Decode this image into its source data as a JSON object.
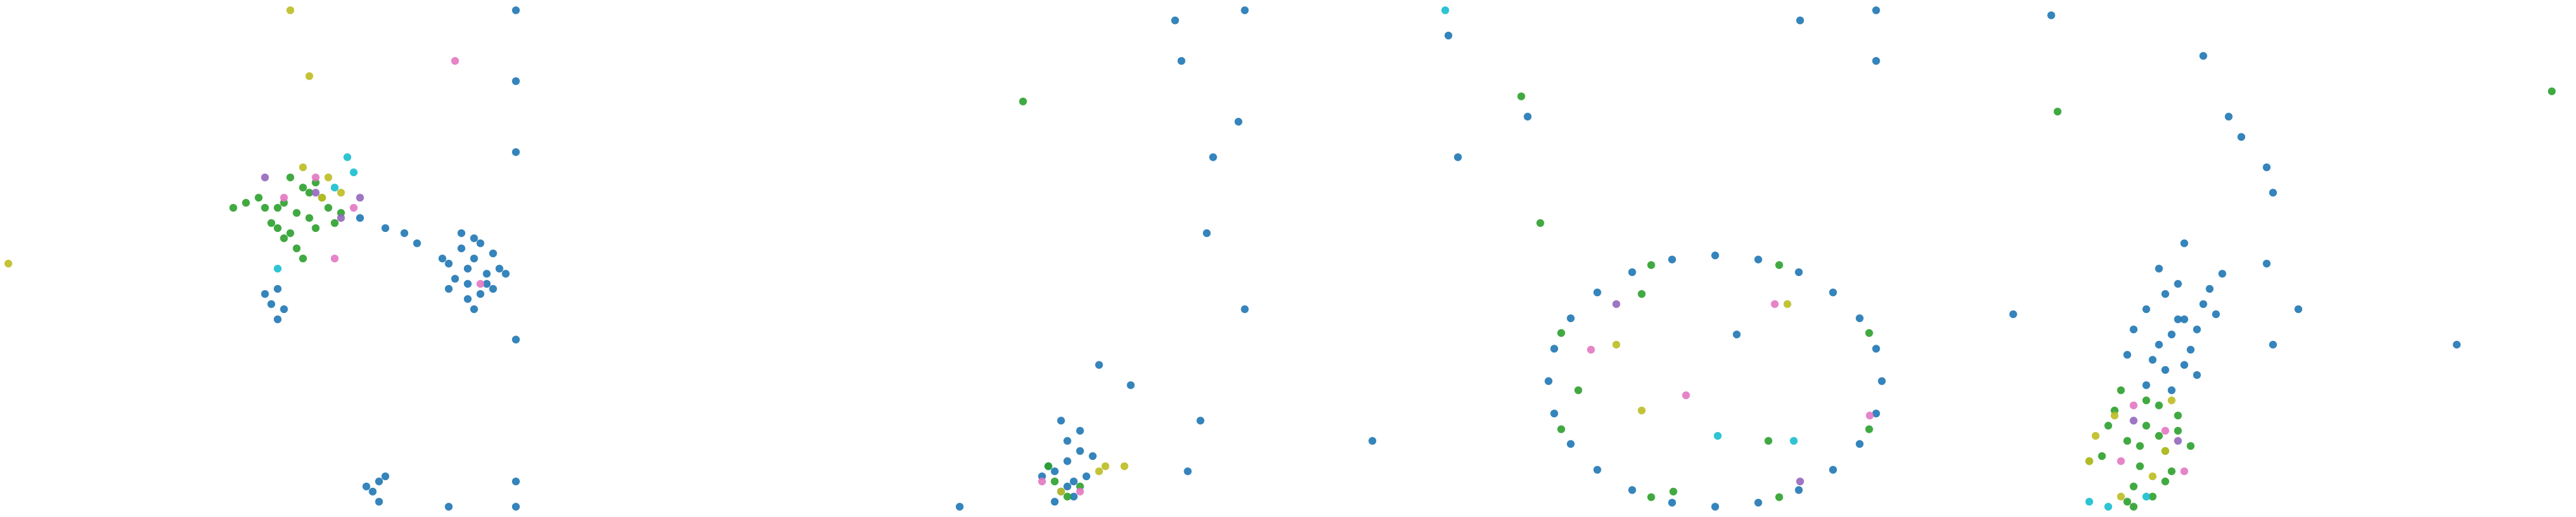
{
  "chart_data": [
    {
      "type": "scatter",
      "xlim": [
        0,
        100
      ],
      "ylim": [
        0,
        100
      ],
      "series": [
        {
          "color": "#1f77b4",
          "x": [
            72,
            74,
            76,
            70,
            73,
            77,
            75,
            71,
            78,
            74,
            69,
            76,
            73,
            72,
            75,
            79,
            70,
            74,
            77,
            73,
            43,
            42,
            44,
            43,
            41,
            59,
            58,
            60,
            59,
            57,
            80.6,
            80.6,
            80.6,
            80.6,
            80.6,
            80.6,
            56,
            60,
            63,
            65,
            70
          ],
          "y": [
            52,
            50,
            47,
            49,
            45,
            51,
            43,
            46,
            48,
            54,
            50,
            45,
            42,
            55,
            53,
            47,
            44,
            40,
            44,
            48,
            44,
            41,
            40,
            38,
            43,
            6,
            4,
            7,
            2,
            5,
            99,
            85,
            71,
            34,
            6,
            1,
            58,
            56,
            55,
            53,
            1
          ]
        },
        {
          "color": "#2ca02c",
          "x": [
            46,
            44,
            48,
            42,
            50,
            45,
            47,
            43,
            49,
            41,
            46,
            51,
            38,
            36,
            44,
            48,
            52,
            45,
            40,
            47,
            43,
            49,
            53
          ],
          "y": [
            59,
            61,
            58,
            57,
            62,
            55,
            64,
            60,
            56,
            60,
            52,
            60,
            61,
            60,
            54,
            63,
            57,
            66,
            62,
            50,
            56,
            65,
            59
          ]
        },
        {
          "color": "#bcbd22",
          "x": [
            45,
            48,
            51,
            50,
            53,
            47,
            0.5
          ],
          "y": [
            99,
            86,
            66,
            62,
            63,
            68,
            49
          ]
        },
        {
          "color": "#e377c2",
          "x": [
            71,
            52,
            44,
            49,
            55,
            75
          ],
          "y": [
            89,
            50,
            62,
            66,
            60,
            45
          ]
        },
        {
          "color": "#17becf",
          "x": [
            54,
            55,
            43,
            52
          ],
          "y": [
            70,
            67,
            48,
            64
          ]
        },
        {
          "color": "#9467bd",
          "x": [
            41,
            49,
            56,
            53
          ],
          "y": [
            66,
            63,
            62,
            58
          ]
        }
      ]
    },
    {
      "type": "scatter",
      "xlim": [
        0,
        100
      ],
      "ylim": [
        0,
        100
      ],
      "series": [
        {
          "color": "#1f77b4",
          "x": [
            83,
            94,
            84,
            93,
            89,
            88,
            94,
            71,
            76,
            87,
            49,
            85,
            68,
            64,
            66,
            67,
            65,
            68,
            63,
            66,
            69,
            64,
            67,
            65,
            70,
            62,
            66
          ],
          "y": [
            97,
            99,
            89,
            77,
            70,
            55,
            40,
            29,
            25,
            18,
            1,
            8,
            16,
            8,
            10,
            6,
            4,
            12,
            9,
            14,
            7,
            2,
            3,
            18,
            11,
            7,
            5
          ]
        },
        {
          "color": "#2ca02c",
          "x": [
            59,
            64,
            66,
            63,
            68
          ],
          "y": [
            81,
            6,
            3,
            9,
            5
          ]
        },
        {
          "color": "#bcbd22",
          "x": [
            71,
            72,
            75,
            65
          ],
          "y": [
            8,
            9,
            9,
            4
          ]
        },
        {
          "color": "#e377c2",
          "x": [
            62,
            68
          ],
          "y": [
            6,
            4
          ]
        }
      ]
    },
    {
      "type": "scatter",
      "xlim": [
        0,
        100
      ],
      "ylim": [
        0,
        100
      ],
      "series": [
        {
          "color": "#1f77b4",
          "x": [
            92.9,
            92.0,
            89.4,
            85.2,
            79.8,
            73.4,
            66.6,
            59.8,
            53.5,
            48.0,
            43.8,
            41.2,
            40.3,
            41.2,
            43.8,
            48.0,
            53.5,
            59.8,
            66.6,
            73.4,
            79.8,
            85.2,
            89.4,
            92.0,
            12.5,
            24.5,
            26,
            37,
            80,
            92,
            70,
            92
          ],
          "y": [
            25.8,
            32.2,
            38.2,
            43.3,
            47.3,
            49.8,
            50.6,
            49.8,
            47.3,
            43.3,
            38.2,
            32.2,
            25.8,
            19.4,
            13.4,
            8.3,
            4.3,
            1.8,
            1.0,
            1.8,
            4.3,
            8.3,
            13.4,
            19.4,
            14,
            94,
            70,
            78,
            97,
            89,
            35,
            99
          ]
        },
        {
          "color": "#2ca02c",
          "x": [
            90.9,
            76.7,
            56.5,
            42.3,
            42.3,
            56.5,
            76.7,
            90.9,
            36,
            45,
            55,
            60,
            75,
            39
          ],
          "y": [
            35.3,
            48.7,
            48.7,
            35.3,
            16.3,
            2.9,
            2.9,
            16.3,
            82,
            24,
            43,
            4,
            14,
            57
          ]
        },
        {
          "color": "#bcbd22",
          "x": [
            51,
            55,
            78
          ],
          "y": [
            33,
            20,
            41
          ]
        },
        {
          "color": "#e377c2",
          "x": [
            62,
            47,
            91,
            76
          ],
          "y": [
            23,
            32,
            19,
            41
          ]
        },
        {
          "color": "#9467bd",
          "x": [
            51,
            80
          ],
          "y": [
            41,
            6
          ]
        },
        {
          "color": "#17becf",
          "x": [
            24,
            79,
            67
          ],
          "y": [
            99,
            14,
            15
          ]
        }
      ]
    },
    {
      "type": "scatter",
      "xlim": [
        0,
        100
      ],
      "ylim": [
        0,
        100
      ],
      "series": [
        {
          "color": "#1f77b4",
          "x": [
            18,
            42,
            46,
            48,
            52,
            53,
            82,
            12,
            57,
            52,
            39,
            53,
            33,
            36,
            39,
            41,
            35,
            38,
            42,
            34,
            37,
            40,
            31,
            36,
            39,
            43,
            45,
            35,
            38,
            33,
            41,
            30,
            37,
            44
          ],
          "y": [
            98,
            90,
            78,
            74,
            68,
            63,
            33,
            39,
            40,
            49,
            53,
            33,
            40,
            43,
            38,
            36,
            33,
            45,
            41,
            30,
            35,
            32,
            36,
            28,
            29,
            44,
            47,
            48,
            38,
            25,
            27,
            31,
            24,
            39
          ]
        },
        {
          "color": "#2ca02c",
          "x": [
            97,
            19,
            30,
            33,
            36,
            28,
            32,
            35,
            38,
            26,
            31,
            34,
            37,
            29,
            33,
            36,
            40,
            27,
            31,
            35,
            24,
            32,
            38,
            30
          ],
          "y": [
            83,
            79,
            14,
            17,
            12,
            20,
            9,
            15,
            19,
            11,
            5,
            3,
            8,
            24,
            22,
            6,
            13,
            17,
            1,
            21,
            10,
            13,
            16,
            2
          ]
        },
        {
          "color": "#bcbd22",
          "x": [
            25,
            28,
            34,
            37,
            29,
            24,
            36
          ],
          "y": [
            15,
            19,
            7,
            22,
            3,
            10,
            12
          ]
        },
        {
          "color": "#e377c2",
          "x": [
            29,
            36,
            31,
            39
          ],
          "y": [
            10,
            16,
            21,
            8
          ]
        },
        {
          "color": "#17becf",
          "x": [
            24,
            27,
            33
          ],
          "y": [
            2,
            1,
            3
          ]
        },
        {
          "color": "#9467bd",
          "x": [
            31,
            38
          ],
          "y": [
            18,
            14
          ]
        }
      ]
    }
  ]
}
